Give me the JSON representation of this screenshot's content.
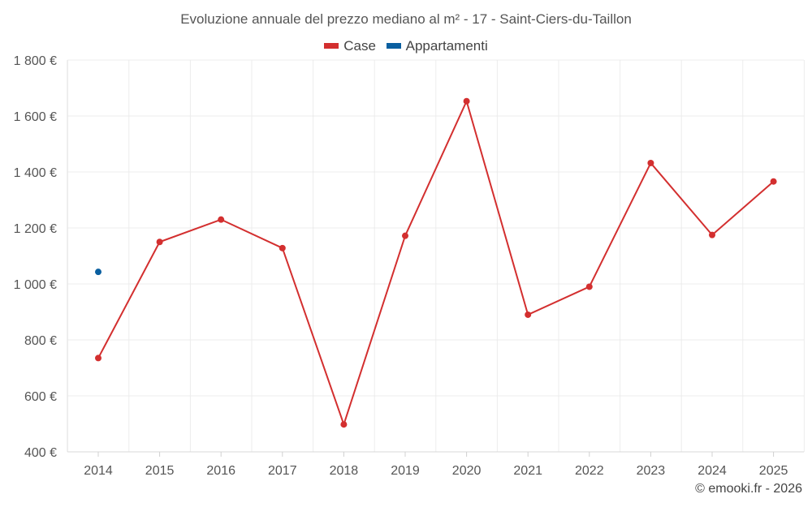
{
  "chart_data": {
    "type": "line",
    "title": "Evoluzione annuale del prezzo mediano al m² - 17 - Saint-Ciers-du-Taillon",
    "categories": [
      "2014",
      "2015",
      "2016",
      "2017",
      "2018",
      "2019",
      "2020",
      "2021",
      "2022",
      "2023",
      "2024",
      "2025"
    ],
    "series": [
      {
        "name": "Case",
        "color": "#d32f2f",
        "values": [
          735,
          1150,
          1230,
          1128,
          498,
          1172,
          1653,
          890,
          990,
          1432,
          1175,
          1366
        ]
      },
      {
        "name": "Appartamenti",
        "color": "#0a5fa0",
        "values": [
          1043,
          null,
          null,
          null,
          null,
          null,
          null,
          null,
          null,
          null,
          null,
          null
        ]
      }
    ],
    "ylim": [
      400,
      1800
    ],
    "yticks": [
      400,
      600,
      800,
      1000,
      1200,
      1400,
      1600,
      1800
    ],
    "ytick_labels": [
      "400 €",
      "600 €",
      "800 €",
      "1 000 €",
      "1 200 €",
      "1 400 €",
      "1 600 €",
      "1 800 €"
    ],
    "legend_position": "top-center",
    "grid": true
  },
  "footer": {
    "credit": "© emooki.fr - 2026"
  }
}
